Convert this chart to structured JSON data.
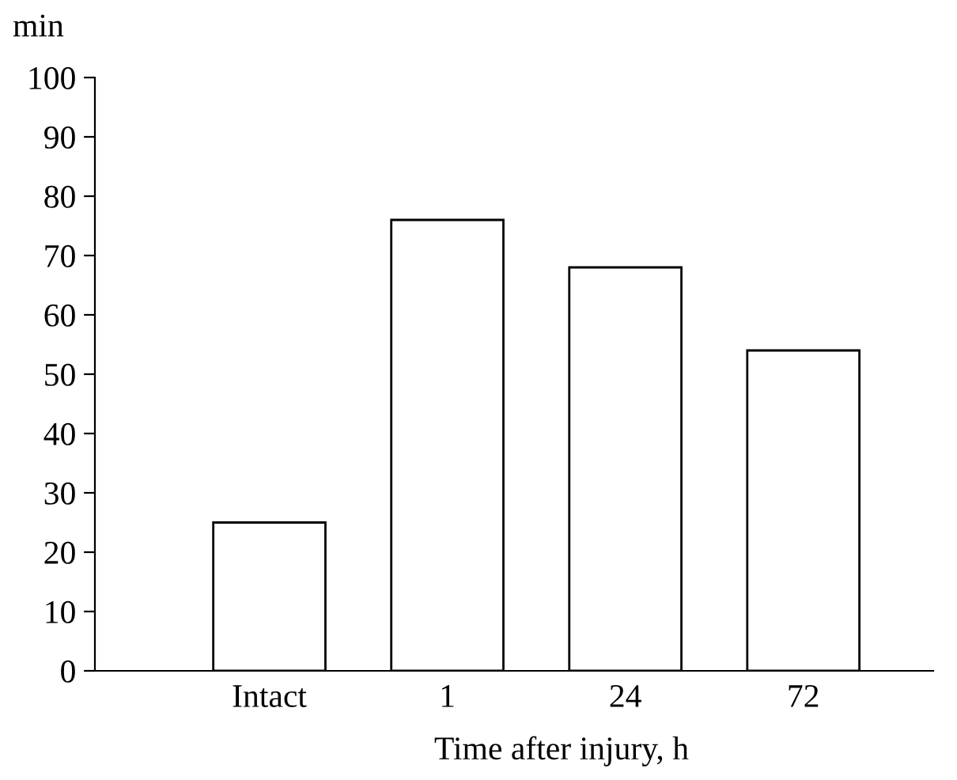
{
  "chart_data": {
    "type": "bar",
    "ylabel": "min",
    "xlabel": "Time after injury, h",
    "categories": [
      "Intact",
      "1",
      "24",
      "72"
    ],
    "values": [
      25,
      76,
      68,
      54
    ],
    "color": "#ffffff",
    "ylim": [
      0,
      100
    ],
    "yticks": [
      0,
      10,
      20,
      30,
      40,
      50,
      60,
      70,
      80,
      90,
      100
    ],
    "grid": false
  }
}
